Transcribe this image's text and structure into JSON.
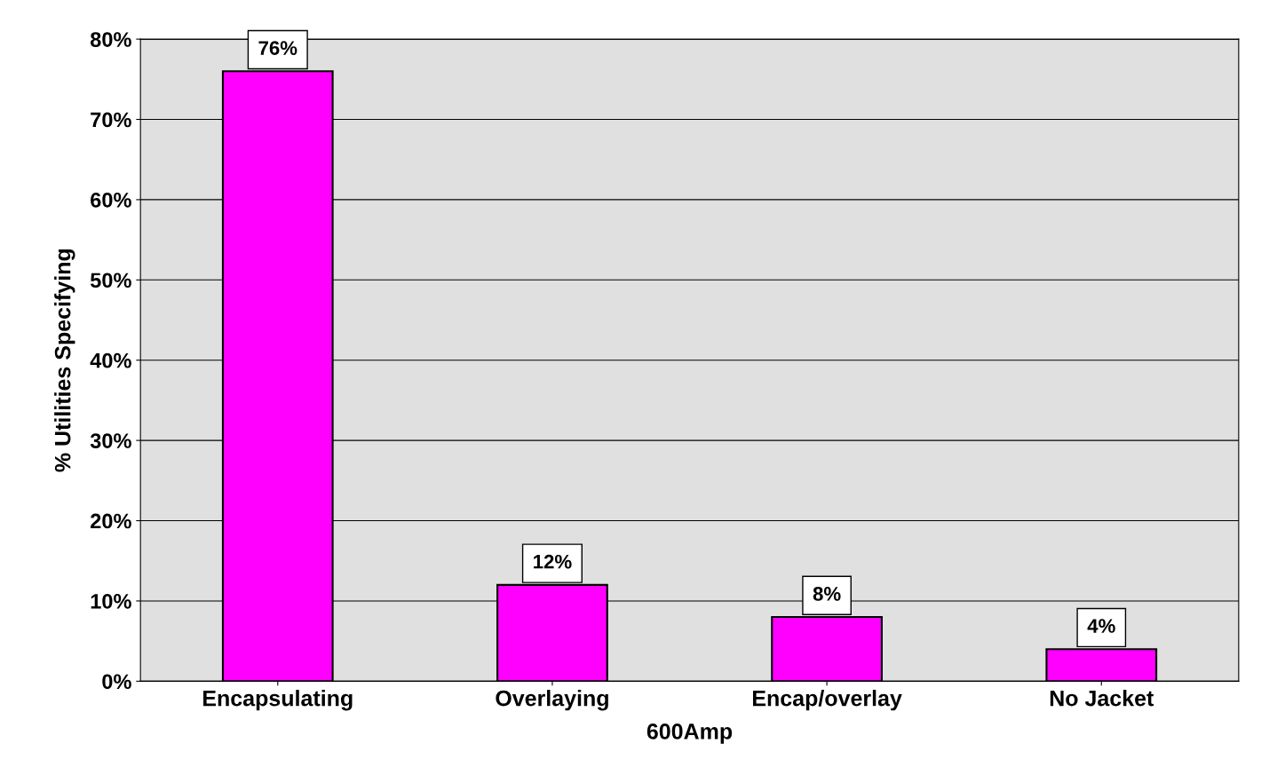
{
  "chart_data": {
    "type": "bar",
    "categories": [
      "Encapsulating",
      "Overlaying",
      "Encap/overlay",
      "No Jacket"
    ],
    "values": [
      76,
      12,
      8,
      4
    ],
    "value_labels": [
      "76%",
      "12%",
      "8%",
      "4%"
    ],
    "color": "#ff00ff",
    "xlabel": "600Amp",
    "ylabel": "% Utilities Specifying",
    "ylim": [
      0,
      80
    ],
    "yticks": [
      {
        "value": 0,
        "label": "0%"
      },
      {
        "value": 10,
        "label": "10%"
      },
      {
        "value": 20,
        "label": "20%"
      },
      {
        "value": 30,
        "label": "30%"
      },
      {
        "value": 40,
        "label": "40%"
      },
      {
        "value": 50,
        "label": "50%"
      },
      {
        "value": 60,
        "label": "60%"
      },
      {
        "value": 70,
        "label": "70%"
      },
      {
        "value": 80,
        "label": "80%"
      }
    ],
    "grid": "y"
  }
}
